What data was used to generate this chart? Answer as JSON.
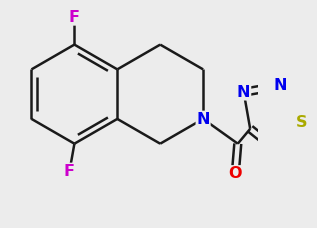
{
  "bg_color": "#ececec",
  "bond_color": "#1a1a1a",
  "bond_width": 1.8,
  "atom_colors": {
    "F": "#cc00cc",
    "N": "#0000ee",
    "O": "#ee0000",
    "S": "#aaaa00",
    "C": "#1a1a1a"
  },
  "font_size": 11.5
}
